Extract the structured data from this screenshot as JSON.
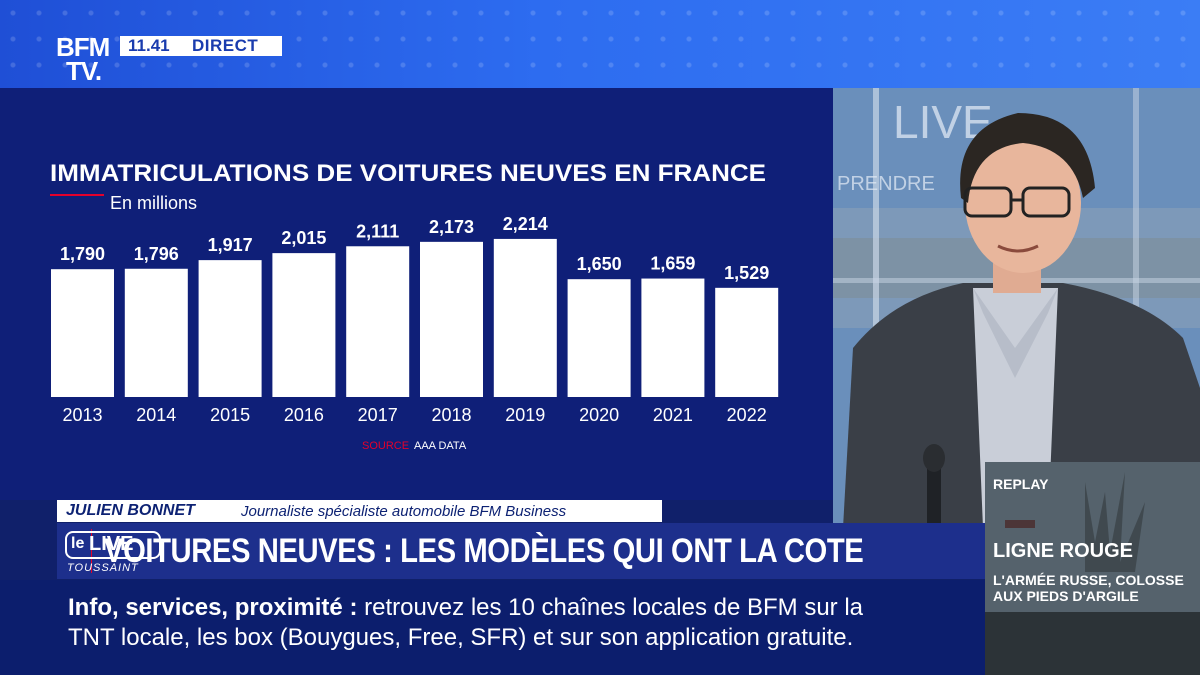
{
  "header": {
    "logo_line1": "BFM",
    "logo_line2": "TV.",
    "time": "11.41",
    "live_label": "DIRECT"
  },
  "chart_data": {
    "type": "bar",
    "title": "IMMATRICULATIONS DE VOITURES NEUVES EN FRANCE",
    "subtitle": "En millions",
    "categories": [
      "2013",
      "2014",
      "2015",
      "2016",
      "2017",
      "2018",
      "2019",
      "2020",
      "2021",
      "2022"
    ],
    "values": [
      1.79,
      1.796,
      1.917,
      2.015,
      2.111,
      2.173,
      2.214,
      1.65,
      1.659,
      1.529
    ],
    "value_labels": [
      "1,790",
      "1,796",
      "1,917",
      "2,015",
      "2,111",
      "2,173",
      "2,214",
      "1,650",
      "1,659",
      "1,529"
    ],
    "source_label": "SOURCE",
    "source_text": "AAA DATA",
    "bar_color": "#ffffff",
    "accent_color": "#e4002b"
  },
  "lower_third": {
    "name": "JULIEN BONNET",
    "role": "Journaliste spécialiste automobile BFM Business",
    "show_le": "le",
    "show_live": "LIVE",
    "show_sub": "TOUSSAINT",
    "headline": "VOITURES NEUVES : LES MODÈLES QUI ONT LA COTE"
  },
  "ticker": {
    "lead": "Info, services, proximité",
    "colon": " : ",
    "line1_rest": "retrouvez les 10 chaînes locales de BFM sur la",
    "line2": "TNT locale, les box (Bouygues, Free, SFR) et sur son application gratuite."
  },
  "replay": {
    "label": "REPLAY",
    "title": "LIGNE ROUGE",
    "subtitle": "L'ARMÉE RUSSE, COLOSSE AUX PIEDS D'ARGILE"
  }
}
